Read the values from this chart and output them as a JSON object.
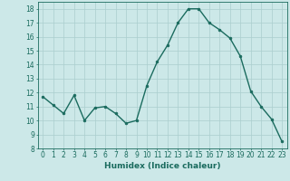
{
  "x": [
    0,
    1,
    2,
    3,
    4,
    5,
    6,
    7,
    8,
    9,
    10,
    11,
    12,
    13,
    14,
    15,
    16,
    17,
    18,
    19,
    20,
    21,
    22,
    23
  ],
  "y": [
    11.7,
    11.1,
    10.5,
    11.8,
    10.0,
    10.9,
    11.0,
    10.5,
    9.8,
    10.0,
    12.5,
    14.2,
    15.4,
    17.0,
    18.0,
    18.0,
    17.0,
    16.5,
    15.9,
    14.6,
    12.1,
    11.0,
    10.1,
    8.5
  ],
  "line_color": "#1a6b5e",
  "marker": "o",
  "marker_size": 2,
  "bg_color": "#cce8e8",
  "grid_color": "#aacece",
  "xlabel": "Humidex (Indice chaleur)",
  "xlim": [
    -0.5,
    23.5
  ],
  "ylim": [
    8,
    18.5
  ],
  "yticks": [
    8,
    9,
    10,
    11,
    12,
    13,
    14,
    15,
    16,
    17,
    18
  ],
  "xticks": [
    0,
    1,
    2,
    3,
    4,
    5,
    6,
    7,
    8,
    9,
    10,
    11,
    12,
    13,
    14,
    15,
    16,
    17,
    18,
    19,
    20,
    21,
    22,
    23
  ],
  "tick_color": "#1a6b5e",
  "xlabel_fontsize": 6.5,
  "tick_fontsize": 5.5,
  "linewidth": 1.0
}
